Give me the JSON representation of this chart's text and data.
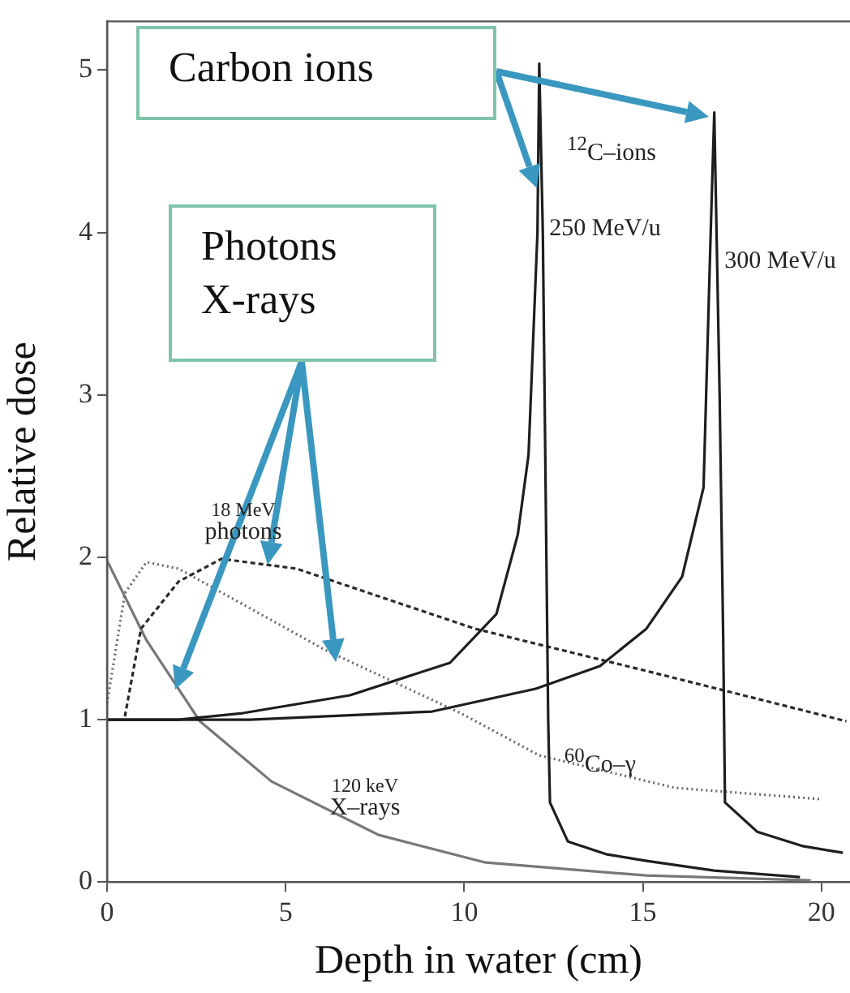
{
  "chart_data": {
    "type": "line",
    "xlabel": "Depth in water (cm)",
    "ylabel": "Relative dose",
    "xlim": [
      0,
      20.8
    ],
    "xticks": [
      0,
      5,
      10,
      15,
      20
    ],
    "ylim": [
      0,
      5.3
    ],
    "yticks": [
      0,
      1,
      2,
      3,
      4,
      5
    ],
    "grid": false,
    "legend": false,
    "marker": "none",
    "series": [
      {
        "color": "#1e1e1e",
        "line_style": "solid",
        "x": [
          0,
          2,
          3.8,
          6.8,
          9.6,
          10.9,
          11.5,
          11.8,
          12.05,
          12.1,
          12.2,
          12.3,
          12.35,
          12.4,
          12.9,
          14,
          15.1,
          17,
          19.4
        ],
        "values": [
          1,
          1,
          1.04,
          1.15,
          1.35,
          1.65,
          2.14,
          2.63,
          4,
          5.04,
          4,
          2,
          1,
          0.49,
          0.25,
          0.17,
          0.13,
          0.07,
          0.03
        ]
      },
      {
        "color": "#1e1e1e",
        "line_style": "solid",
        "x": [
          0,
          4,
          9.1,
          12,
          13.8,
          15.1,
          16.1,
          16.7,
          16.9,
          17,
          17.15,
          17.25,
          17.3,
          18.2,
          19.5,
          20.6
        ],
        "values": [
          1,
          1,
          1.05,
          1.19,
          1.33,
          1.56,
          1.88,
          2.43,
          4,
          4.74,
          3,
          1.5,
          0.49,
          0.31,
          0.22,
          0.18
        ]
      },
      {
        "color": "#2a2a2a",
        "line_style": "dashed",
        "x": [
          0.5,
          0.95,
          2,
          3.2,
          5.3,
          10.3,
          15.1,
          20.7
        ],
        "values": [
          1.02,
          1.56,
          1.85,
          1.99,
          1.93,
          1.56,
          1.3,
          0.99
        ]
      },
      {
        "color": "#666666",
        "line_style": "dotted",
        "x": [
          0,
          0.5,
          1.1,
          2,
          6.1,
          9.9,
          12.1,
          15.9,
          20
        ],
        "values": [
          1.1,
          1.78,
          1.97,
          1.93,
          1.43,
          1.04,
          0.78,
          0.58,
          0.51
        ]
      },
      {
        "color": "#777777",
        "line_style": "solid",
        "x": [
          0,
          1.1,
          2.6,
          4.6,
          7.6,
          10.6,
          15.1,
          19.7
        ],
        "values": [
          1.98,
          1.49,
          0.99,
          0.62,
          0.29,
          0.12,
          0.04,
          0.01
        ]
      }
    ],
    "annotations": [
      "$^{12}$C–ions",
      "250 MeV/u",
      "300 MeV/u",
      "18 MeV\nphotons",
      "$^{60}$Co–γ",
      "120 keV\nX–rays",
      "Carbon ions",
      "Photons\nX-rays"
    ]
  }
}
